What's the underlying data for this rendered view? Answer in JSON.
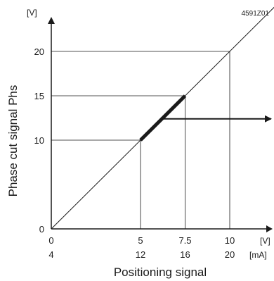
{
  "figure_code": "4591Z01",
  "chart_data": {
    "type": "line",
    "xlabel": "Positioning signal",
    "ylabel": "Phase cut signal Phs",
    "x_unit_v": "[V]",
    "x_unit_ma": "[mA]",
    "y_unit": "[V]",
    "xlim": [
      0,
      12
    ],
    "ylim": [
      0,
      24
    ],
    "x_ticks_v": [
      "0",
      "5",
      "7.5",
      "10"
    ],
    "x_ticks_ma": [
      "4",
      "12",
      "16",
      "20"
    ],
    "y_ticks": [
      "0",
      "10",
      "15",
      "20"
    ],
    "grid": "reference lines at tick values",
    "series": [
      {
        "points": [
          [
            0,
            0
          ],
          [
            12.5,
            25
          ]
        ]
      },
      {
        "points": [
          [
            5,
            10
          ],
          [
            7.5,
            15
          ]
        ]
      }
    ],
    "arrow_from": [
      6.2,
      12.4
    ]
  }
}
